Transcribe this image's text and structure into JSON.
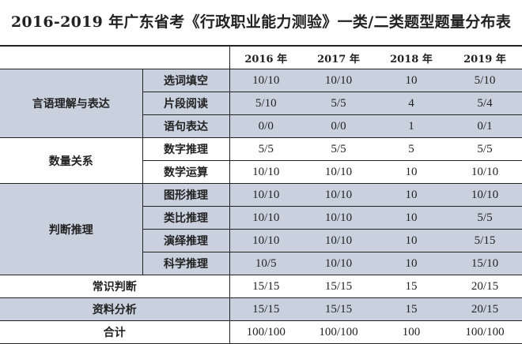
{
  "title": "2016-2019 年广东省考《行政职业能力测验》一类/二类题型题量分布表",
  "years": [
    "2016 年",
    "2017 年",
    "2018 年",
    "2019 年"
  ],
  "groups": [
    {
      "name": "言语理解与表达",
      "rows": [
        {
          "name": "选词填空",
          "values": [
            "10/10",
            "10/10",
            "10",
            "5/10"
          ]
        },
        {
          "name": "片段阅读",
          "values": [
            "5/10",
            "5/5",
            "4",
            "5/4"
          ]
        },
        {
          "name": "语句表达",
          "values": [
            "0/0",
            "0/0",
            "1",
            "0/1"
          ]
        }
      ]
    },
    {
      "name": "数量关系",
      "rows": [
        {
          "name": "数字推理",
          "values": [
            "5/5",
            "5/5",
            "5",
            "5/5"
          ]
        },
        {
          "name": "数学运算",
          "values": [
            "10/10",
            "10/10",
            "10",
            "10/10"
          ]
        }
      ]
    },
    {
      "name": "判断推理",
      "rows": [
        {
          "name": "图形推理",
          "values": [
            "10/10",
            "10/10",
            "10",
            "10/10"
          ]
        },
        {
          "name": "类比推理",
          "values": [
            "10/10",
            "10/10",
            "10",
            "5/5"
          ]
        },
        {
          "name": "演绎推理",
          "values": [
            "10/10",
            "10/10",
            "10",
            "5/15"
          ]
        },
        {
          "name": "科学推理",
          "values": [
            "10/5",
            "10/10",
            "10",
            "15/10"
          ]
        }
      ]
    }
  ],
  "singles": [
    {
      "name": "常识判断",
      "values": [
        "15/15",
        "15/15",
        "15",
        "20/15"
      ]
    },
    {
      "name": "资料分析",
      "values": [
        "15/15",
        "15/15",
        "15",
        "20/15"
      ]
    },
    {
      "name": "合计",
      "values": [
        "100/100",
        "100/100",
        "100",
        "100/100"
      ]
    }
  ],
  "colors": {
    "shade": "#c9d0de"
  }
}
